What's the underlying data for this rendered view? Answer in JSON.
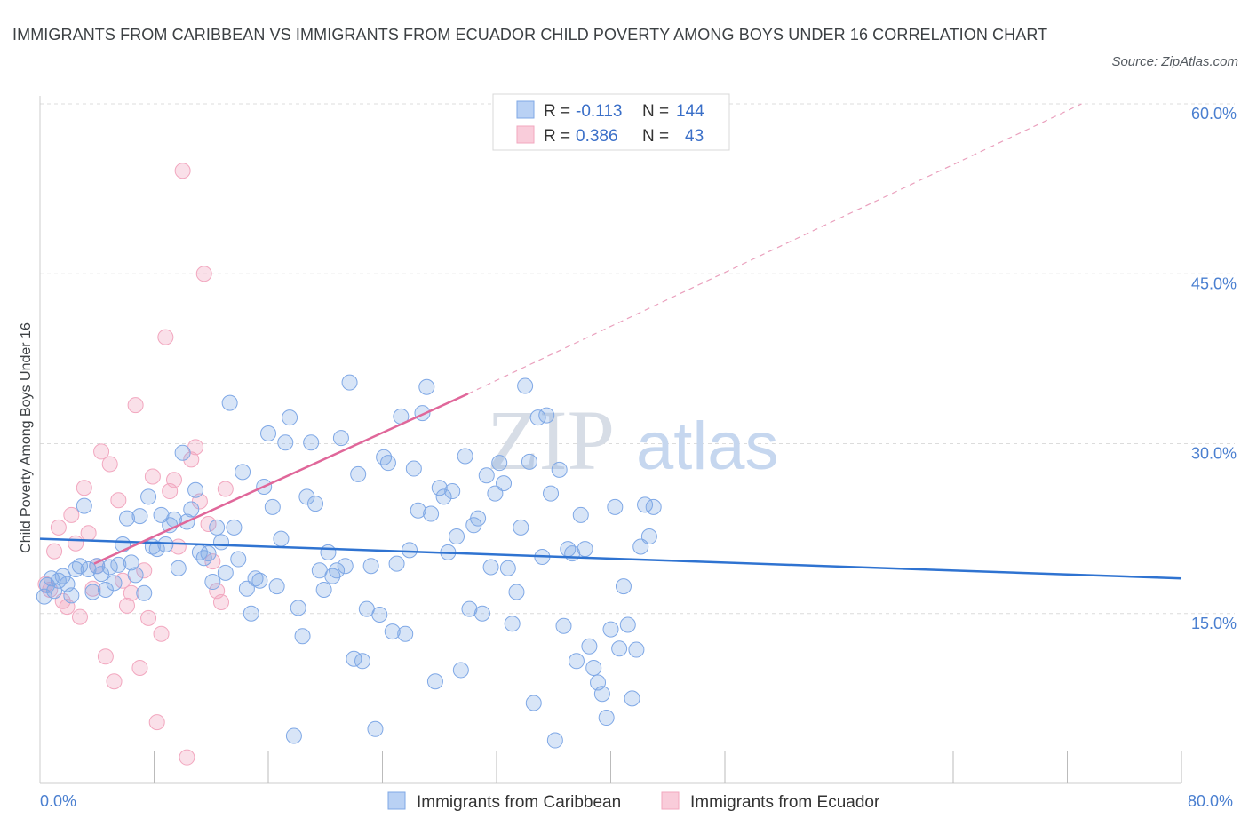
{
  "title": "IMMIGRANTS FROM CARIBBEAN VS IMMIGRANTS FROM ECUADOR CHILD POVERTY AMONG BOYS UNDER 16 CORRELATION CHART",
  "source": "Source: ZipAtlas.com",
  "watermark": {
    "zip": "ZIP",
    "atlas": "atlas"
  },
  "colors": {
    "blue": "#7fa8e6",
    "blue_line": "#2f73d1",
    "pink": "#f2a7bf",
    "pink_line": "#e0679a",
    "tick": "#4a7fd0"
  },
  "legend": {
    "rows": [
      {
        "r_label": "R =",
        "r_value": "-0.113",
        "n_label": "N =",
        "n_value": "144"
      },
      {
        "r_label": "R =",
        "r_value": "0.386",
        "n_label": "N =",
        "n_value": "43"
      }
    ]
  },
  "chart_data": {
    "type": "scatter",
    "title": "IMMIGRANTS FROM CARIBBEAN VS IMMIGRANTS FROM ECUADOR CHILD POVERTY AMONG BOYS UNDER 16 CORRELATION CHART",
    "xlabel": "",
    "ylabel": "Child Poverty Among Boys Under 16",
    "xlim": [
      0,
      80
    ],
    "ylim": [
      0,
      60
    ],
    "x_tick_labels": [
      "0.0%",
      "80.0%"
    ],
    "y_tick_labels": [
      "15.0%",
      "30.0%",
      "45.0%",
      "60.0%"
    ],
    "y_ticks": [
      15,
      30,
      45,
      60
    ],
    "grid": true,
    "legend_position": "top-center",
    "series": [
      {
        "name": "Immigrants from Caribbean",
        "color": "#7fa8e6",
        "trend": {
          "x": [
            0,
            80
          ],
          "y": [
            21.6,
            18.1
          ]
        },
        "points": [
          [
            0.3,
            16.5
          ],
          [
            0.5,
            17.5
          ],
          [
            0.8,
            18.1
          ],
          [
            1.0,
            17.0
          ],
          [
            1.3,
            17.9
          ],
          [
            1.6,
            18.3
          ],
          [
            1.9,
            17.6
          ],
          [
            2.2,
            16.6
          ],
          [
            2.5,
            18.9
          ],
          [
            2.8,
            19.2
          ],
          [
            3.1,
            24.5
          ],
          [
            3.4,
            18.9
          ],
          [
            3.7,
            16.9
          ],
          [
            4.0,
            19.2
          ],
          [
            4.3,
            18.5
          ],
          [
            4.6,
            17.1
          ],
          [
            4.9,
            19.1
          ],
          [
            5.2,
            17.7
          ],
          [
            5.5,
            19.3
          ],
          [
            5.8,
            21.1
          ],
          [
            6.1,
            23.4
          ],
          [
            6.4,
            19.5
          ],
          [
            6.7,
            18.4
          ],
          [
            7.0,
            23.6
          ],
          [
            7.3,
            16.8
          ],
          [
            7.6,
            25.3
          ],
          [
            7.9,
            20.9
          ],
          [
            8.2,
            20.7
          ],
          [
            8.5,
            23.7
          ],
          [
            8.8,
            21.1
          ],
          [
            9.1,
            22.8
          ],
          [
            9.4,
            23.3
          ],
          [
            9.7,
            19.0
          ],
          [
            10.0,
            29.2
          ],
          [
            10.3,
            23.1
          ],
          [
            10.6,
            24.2
          ],
          [
            10.9,
            25.9
          ],
          [
            11.2,
            20.4
          ],
          [
            11.5,
            19.9
          ],
          [
            11.8,
            20.3
          ],
          [
            12.1,
            17.8
          ],
          [
            12.4,
            22.6
          ],
          [
            12.7,
            21.3
          ],
          [
            13.0,
            18.6
          ],
          [
            13.3,
            33.6
          ],
          [
            13.6,
            22.6
          ],
          [
            13.9,
            19.8
          ],
          [
            14.2,
            27.5
          ],
          [
            14.5,
            17.2
          ],
          [
            14.8,
            15.0
          ],
          [
            15.1,
            18.1
          ],
          [
            15.4,
            17.9
          ],
          [
            15.7,
            26.2
          ],
          [
            16.0,
            30.9
          ],
          [
            16.3,
            24.4
          ],
          [
            16.6,
            17.4
          ],
          [
            16.9,
            21.6
          ],
          [
            17.2,
            30.1
          ],
          [
            17.5,
            32.3
          ],
          [
            17.8,
            4.2
          ],
          [
            18.1,
            15.5
          ],
          [
            18.4,
            13.0
          ],
          [
            18.7,
            25.3
          ],
          [
            19.0,
            30.1
          ],
          [
            19.3,
            24.7
          ],
          [
            19.6,
            18.8
          ],
          [
            19.9,
            17.1
          ],
          [
            20.2,
            20.4
          ],
          [
            20.5,
            18.3
          ],
          [
            20.8,
            18.8
          ],
          [
            21.1,
            30.5
          ],
          [
            21.4,
            19.2
          ],
          [
            21.7,
            35.4
          ],
          [
            22.0,
            11.0
          ],
          [
            22.3,
            27.3
          ],
          [
            22.6,
            10.8
          ],
          [
            22.9,
            15.4
          ],
          [
            23.2,
            19.2
          ],
          [
            23.5,
            4.8
          ],
          [
            23.8,
            14.9
          ],
          [
            24.1,
            28.8
          ],
          [
            24.4,
            28.3
          ],
          [
            24.7,
            13.4
          ],
          [
            25.0,
            19.4
          ],
          [
            25.3,
            32.4
          ],
          [
            25.6,
            13.2
          ],
          [
            25.9,
            20.6
          ],
          [
            26.2,
            27.8
          ],
          [
            26.5,
            24.1
          ],
          [
            26.8,
            32.7
          ],
          [
            27.1,
            35.0
          ],
          [
            27.4,
            23.8
          ],
          [
            27.7,
            9.0
          ],
          [
            28.0,
            26.1
          ],
          [
            28.3,
            25.3
          ],
          [
            28.6,
            20.4
          ],
          [
            28.9,
            25.8
          ],
          [
            29.2,
            21.8
          ],
          [
            29.5,
            10.0
          ],
          [
            29.8,
            28.9
          ],
          [
            30.1,
            15.4
          ],
          [
            30.4,
            22.8
          ],
          [
            30.7,
            23.4
          ],
          [
            31.0,
            15.0
          ],
          [
            31.3,
            27.2
          ],
          [
            31.6,
            19.1
          ],
          [
            31.9,
            25.6
          ],
          [
            32.2,
            28.3
          ],
          [
            32.5,
            26.5
          ],
          [
            32.8,
            19.0
          ],
          [
            33.1,
            14.1
          ],
          [
            33.4,
            16.9
          ],
          [
            33.7,
            22.6
          ],
          [
            34.0,
            35.1
          ],
          [
            34.3,
            28.4
          ],
          [
            34.6,
            7.1
          ],
          [
            34.9,
            32.3
          ],
          [
            35.2,
            20.0
          ],
          [
            35.5,
            32.5
          ],
          [
            35.8,
            25.6
          ],
          [
            36.1,
            3.8
          ],
          [
            36.4,
            27.7
          ],
          [
            36.7,
            13.9
          ],
          [
            37.0,
            20.7
          ],
          [
            37.3,
            20.3
          ],
          [
            37.6,
            10.8
          ],
          [
            37.9,
            23.7
          ],
          [
            38.2,
            20.7
          ],
          [
            38.5,
            12.1
          ],
          [
            38.8,
            10.2
          ],
          [
            39.1,
            8.9
          ],
          [
            39.4,
            7.9
          ],
          [
            39.7,
            5.8
          ],
          [
            40.0,
            13.6
          ],
          [
            40.3,
            24.4
          ],
          [
            40.6,
            11.9
          ],
          [
            40.9,
            17.4
          ],
          [
            41.2,
            14.0
          ],
          [
            41.5,
            7.5
          ],
          [
            41.8,
            11.8
          ],
          [
            42.1,
            20.9
          ],
          [
            42.4,
            24.6
          ],
          [
            42.7,
            21.8
          ],
          [
            43.0,
            24.4
          ]
        ]
      },
      {
        "name": "Immigrants from Ecuador",
        "color": "#f2a7bf",
        "trend": {
          "x": [
            3.8,
            30.0
          ],
          "y": [
            19.4,
            34.4
          ]
        },
        "trend_extrapolated": {
          "x": [
            30.0,
            73.0
          ],
          "y": [
            34.4,
            60.0
          ]
        },
        "points": [
          [
            0.4,
            17.6
          ],
          [
            0.7,
            17.1
          ],
          [
            1.0,
            20.5
          ],
          [
            1.3,
            22.6
          ],
          [
            1.6,
            16.1
          ],
          [
            1.9,
            15.6
          ],
          [
            2.2,
            23.7
          ],
          [
            2.5,
            21.2
          ],
          [
            2.8,
            14.7
          ],
          [
            3.1,
            26.1
          ],
          [
            3.4,
            22.1
          ],
          [
            3.7,
            17.2
          ],
          [
            4.0,
            19.2
          ],
          [
            4.3,
            29.3
          ],
          [
            4.6,
            11.2
          ],
          [
            4.9,
            28.2
          ],
          [
            5.2,
            9.0
          ],
          [
            5.5,
            25.0
          ],
          [
            5.8,
            17.9
          ],
          [
            6.1,
            15.7
          ],
          [
            6.4,
            16.8
          ],
          [
            6.7,
            33.4
          ],
          [
            7.0,
            10.2
          ],
          [
            7.3,
            18.8
          ],
          [
            7.6,
            14.6
          ],
          [
            7.9,
            27.1
          ],
          [
            8.2,
            5.4
          ],
          [
            8.5,
            13.2
          ],
          [
            8.8,
            39.4
          ],
          [
            9.1,
            25.8
          ],
          [
            9.4,
            26.8
          ],
          [
            9.7,
            20.9
          ],
          [
            10.0,
            54.1
          ],
          [
            10.3,
            2.3
          ],
          [
            10.6,
            28.6
          ],
          [
            10.9,
            29.7
          ],
          [
            11.2,
            24.9
          ],
          [
            11.5,
            45.0
          ],
          [
            11.8,
            22.9
          ],
          [
            12.1,
            19.6
          ],
          [
            12.4,
            17.0
          ],
          [
            12.7,
            16.0
          ],
          [
            13.0,
            26.0
          ]
        ]
      }
    ]
  },
  "bottom_legend": [
    {
      "label": "Immigrants from Caribbean"
    },
    {
      "label": "Immigrants from Ecuador"
    }
  ]
}
